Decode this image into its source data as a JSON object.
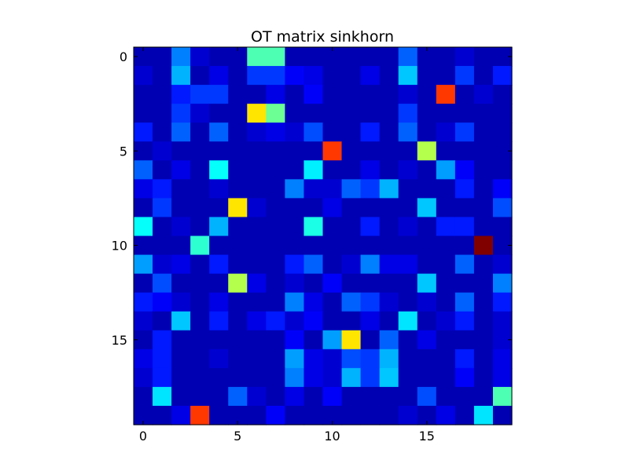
{
  "chart_data": {
    "type": "heatmap",
    "title": "OT matrix sinkhorn",
    "xlabel": "",
    "ylabel": "",
    "colormap": "jet",
    "rows": 20,
    "cols": 20,
    "xticks": [
      0,
      5,
      10,
      15
    ],
    "yticks": [
      0,
      5,
      10,
      15
    ],
    "xlim": [
      -0.5,
      19.5
    ],
    "ylim": [
      19.5,
      -0.5
    ],
    "value_range": [
      0,
      1
    ],
    "grid": false,
    "legend": "none",
    "z": [
      [
        0.05,
        0.05,
        0.25,
        0.08,
        0.05,
        0.05,
        0.45,
        0.45,
        0.05,
        0.05,
        0.05,
        0.05,
        0.05,
        0.05,
        0.22,
        0.05,
        0.05,
        0.08,
        0.05,
        0.05
      ],
      [
        0.08,
        0.05,
        0.3,
        0.05,
        0.1,
        0.05,
        0.18,
        0.18,
        0.12,
        0.1,
        0.05,
        0.05,
        0.1,
        0.05,
        0.32,
        0.05,
        0.05,
        0.18,
        0.05,
        0.15
      ],
      [
        0.05,
        0.05,
        0.15,
        0.18,
        0.18,
        0.05,
        0.05,
        0.1,
        0.05,
        0.12,
        0.05,
        0.05,
        0.05,
        0.05,
        0.08,
        0.05,
        0.82,
        0.05,
        0.08,
        0.05
      ],
      [
        0.05,
        0.05,
        0.18,
        0.08,
        0.05,
        0.05,
        0.65,
        0.48,
        0.05,
        0.05,
        0.05,
        0.05,
        0.05,
        0.05,
        0.18,
        0.05,
        0.05,
        0.05,
        0.05,
        0.05
      ],
      [
        0.15,
        0.05,
        0.22,
        0.05,
        0.22,
        0.05,
        0.08,
        0.1,
        0.08,
        0.2,
        0.05,
        0.05,
        0.15,
        0.05,
        0.22,
        0.05,
        0.08,
        0.18,
        0.05,
        0.05
      ],
      [
        0.05,
        0.08,
        0.05,
        0.05,
        0.05,
        0.05,
        0.05,
        0.05,
        0.05,
        0.05,
        0.82,
        0.05,
        0.05,
        0.05,
        0.05,
        0.55,
        0.05,
        0.05,
        0.05,
        0.05
      ],
      [
        0.22,
        0.05,
        0.1,
        0.05,
        0.38,
        0.05,
        0.05,
        0.05,
        0.05,
        0.36,
        0.05,
        0.05,
        0.1,
        0.05,
        0.08,
        0.05,
        0.28,
        0.12,
        0.05,
        0.05
      ],
      [
        0.1,
        0.15,
        0.05,
        0.05,
        0.08,
        0.05,
        0.05,
        0.05,
        0.25,
        0.08,
        0.08,
        0.22,
        0.18,
        0.3,
        0.05,
        0.05,
        0.05,
        0.15,
        0.05,
        0.12
      ],
      [
        0.05,
        0.18,
        0.05,
        0.05,
        0.05,
        0.65,
        0.08,
        0.05,
        0.05,
        0.05,
        0.1,
        0.05,
        0.05,
        0.05,
        0.05,
        0.32,
        0.05,
        0.05,
        0.05,
        0.2
      ],
      [
        0.38,
        0.05,
        0.08,
        0.05,
        0.3,
        0.05,
        0.05,
        0.05,
        0.05,
        0.4,
        0.05,
        0.05,
        0.15,
        0.05,
        0.08,
        0.05,
        0.15,
        0.15,
        0.05,
        0.05
      ],
      [
        0.05,
        0.05,
        0.05,
        0.42,
        0.05,
        0.05,
        0.05,
        0.05,
        0.05,
        0.05,
        0.05,
        0.05,
        0.05,
        0.05,
        0.05,
        0.05,
        0.05,
        0.05,
        1.0,
        0.05
      ],
      [
        0.28,
        0.08,
        0.1,
        0.05,
        0.15,
        0.05,
        0.05,
        0.05,
        0.15,
        0.22,
        0.05,
        0.08,
        0.25,
        0.1,
        0.1,
        0.05,
        0.05,
        0.22,
        0.05,
        0.08
      ],
      [
        0.05,
        0.2,
        0.05,
        0.05,
        0.05,
        0.55,
        0.1,
        0.05,
        0.08,
        0.05,
        0.12,
        0.05,
        0.05,
        0.05,
        0.05,
        0.32,
        0.05,
        0.05,
        0.05,
        0.25
      ],
      [
        0.15,
        0.12,
        0.08,
        0.05,
        0.1,
        0.05,
        0.05,
        0.05,
        0.25,
        0.1,
        0.05,
        0.22,
        0.18,
        0.08,
        0.05,
        0.08,
        0.05,
        0.22,
        0.05,
        0.15
      ],
      [
        0.08,
        0.05,
        0.32,
        0.05,
        0.15,
        0.05,
        0.1,
        0.15,
        0.08,
        0.12,
        0.05,
        0.05,
        0.1,
        0.05,
        0.35,
        0.05,
        0.08,
        0.15,
        0.05,
        0.08
      ],
      [
        0.05,
        0.15,
        0.05,
        0.05,
        0.05,
        0.05,
        0.05,
        0.05,
        0.12,
        0.05,
        0.28,
        0.65,
        0.05,
        0.22,
        0.05,
        0.1,
        0.05,
        0.05,
        0.05,
        0.08
      ],
      [
        0.1,
        0.15,
        0.05,
        0.05,
        0.08,
        0.05,
        0.05,
        0.05,
        0.28,
        0.1,
        0.08,
        0.2,
        0.18,
        0.3,
        0.05,
        0.05,
        0.05,
        0.15,
        0.05,
        0.1
      ],
      [
        0.08,
        0.15,
        0.05,
        0.05,
        0.05,
        0.05,
        0.05,
        0.05,
        0.25,
        0.1,
        0.08,
        0.3,
        0.18,
        0.32,
        0.05,
        0.05,
        0.05,
        0.12,
        0.05,
        0.1
      ],
      [
        0.05,
        0.35,
        0.05,
        0.05,
        0.05,
        0.22,
        0.08,
        0.05,
        0.1,
        0.05,
        0.12,
        0.05,
        0.05,
        0.05,
        0.05,
        0.2,
        0.05,
        0.05,
        0.05,
        0.45
      ],
      [
        0.05,
        0.05,
        0.1,
        0.82,
        0.05,
        0.05,
        0.05,
        0.12,
        0.05,
        0.05,
        0.05,
        0.05,
        0.05,
        0.05,
        0.08,
        0.05,
        0.1,
        0.05,
        0.35,
        0.05
      ]
    ]
  }
}
